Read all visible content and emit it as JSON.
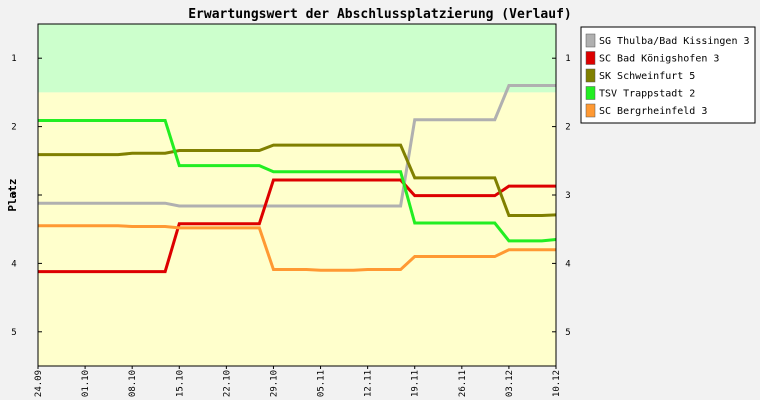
{
  "chart_data": {
    "type": "line",
    "title": "Erwartungswert der Abschlussplatzierung (Verlauf)",
    "ylabel": "Platz",
    "xlabel": "",
    "x": [
      "24.09",
      "01.10",
      "08.10",
      "15.10",
      "22.10",
      "29.10",
      "05.11",
      "12.11",
      "19.11",
      "26.11",
      "03.12",
      "10.12"
    ],
    "y_ticks": [
      1,
      2,
      3,
      4,
      5
    ],
    "ylim": [
      0.5,
      5.5
    ],
    "y_inverted": true,
    "bands": [
      {
        "from": 0.5,
        "to": 1.5,
        "color": "#ccffcc"
      },
      {
        "from": 1.5,
        "to": 5.5,
        "color": "#ffffcc"
      }
    ],
    "grid": false,
    "legend_position": "top-right",
    "series": [
      {
        "name": "SG Thulba/Bad Kissingen 3",
        "color": "#b0b0b0",
        "values": [
          3.12,
          3.12,
          3.12,
          3.16,
          3.16,
          3.16,
          3.16,
          3.16,
          1.9,
          1.9,
          1.4,
          1.4
        ]
      },
      {
        "name": "SC Bad Königshofen 3",
        "color": "#dd0000",
        "values": [
          4.12,
          4.12,
          4.12,
          3.42,
          3.42,
          2.78,
          2.78,
          2.78,
          3.01,
          3.01,
          2.87,
          2.87
        ]
      },
      {
        "name": "SK Schweinfurt 5",
        "color": "#808000",
        "values": [
          2.41,
          2.41,
          2.39,
          2.35,
          2.35,
          2.27,
          2.27,
          2.27,
          2.75,
          2.75,
          3.3,
          3.29
        ]
      },
      {
        "name": "TSV Trappstadt 2",
        "color": "#22ee22",
        "values": [
          1.91,
          1.91,
          1.91,
          2.57,
          2.57,
          2.66,
          2.66,
          2.66,
          3.41,
          3.41,
          3.67,
          3.65
        ]
      },
      {
        "name": "SC Bergrheinfeld 3",
        "color": "#ff9933",
        "values": [
          3.45,
          3.45,
          3.46,
          3.48,
          3.48,
          4.09,
          4.1,
          4.09,
          3.9,
          3.9,
          3.8,
          3.8
        ]
      }
    ]
  }
}
